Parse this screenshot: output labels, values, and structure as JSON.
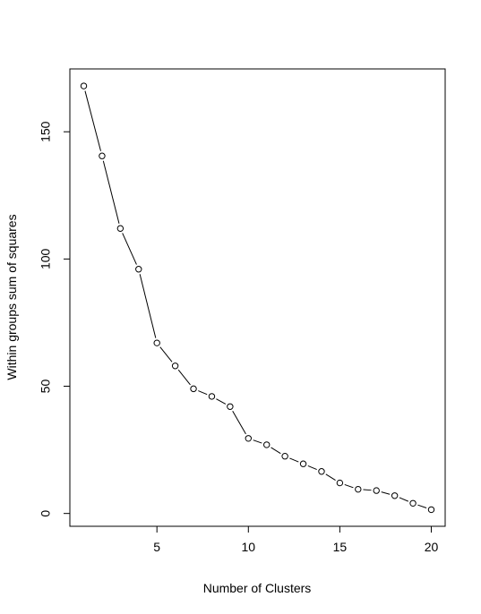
{
  "chart_data": {
    "type": "line",
    "title": "",
    "xlabel": "Number of Clusters",
    "ylabel": "Within groups sum of squares",
    "x": [
      1,
      2,
      3,
      4,
      5,
      6,
      7,
      8,
      9,
      10,
      11,
      12,
      13,
      14,
      15,
      16,
      17,
      18,
      19,
      20
    ],
    "y": [
      168,
      140.5,
      112,
      96,
      67,
      58,
      49,
      46,
      42,
      29.5,
      27,
      22.5,
      19.5,
      16.5,
      12,
      9.5,
      9,
      7,
      4,
      1.5
    ],
    "xlim": [
      0.24,
      20.76
    ],
    "ylim": [
      -5.04,
      174.7
    ],
    "xticks": [
      5,
      10,
      15,
      20
    ],
    "yticks": [
      0,
      50,
      100,
      150
    ],
    "grid": false,
    "legend": false
  }
}
